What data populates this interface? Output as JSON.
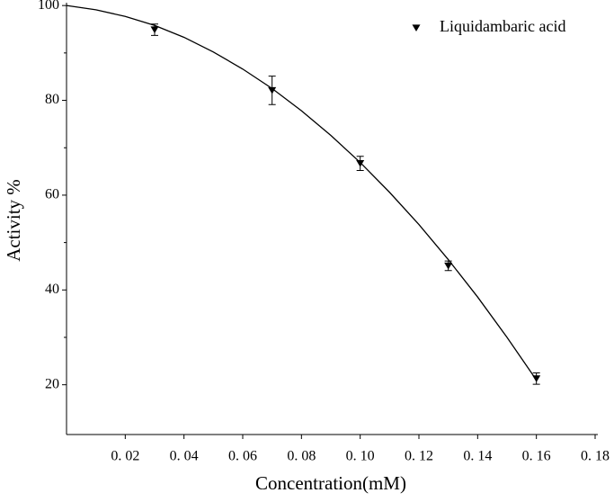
{
  "chart_data": {
    "type": "scatter",
    "xlabel": "Concentration(mM)",
    "ylabel": "Activity %",
    "series": [
      {
        "name": "Liquidambaric acid",
        "color": "#000000",
        "x": [
          0.03,
          0.07,
          0.1,
          0.13,
          0.16
        ],
        "values": [
          94.9,
          82.1,
          66.7,
          45.1,
          21.3
        ],
        "errors": [
          1.2,
          3.0,
          1.5,
          1.0,
          1.2
        ]
      }
    ],
    "fit": {
      "color": "#000000",
      "x": [
        0,
        0.01,
        0.02,
        0.03,
        0.04,
        0.05,
        0.06,
        0.07,
        0.08,
        0.09,
        0.1,
        0.11,
        0.12,
        0.13,
        0.14,
        0.15,
        0.16
      ],
      "values": [
        100,
        99.1,
        97.7,
        95.8,
        93.3,
        90.2,
        86.6,
        82.5,
        77.8,
        72.6,
        66.9,
        60.6,
        53.8,
        46.4,
        38.5,
        30.0,
        21.0
      ]
    },
    "xlim": [
      0,
      0.18
    ],
    "xticks": [
      {
        "value": 0.02,
        "label": "0. 02"
      },
      {
        "value": 0.04,
        "label": "0. 04"
      },
      {
        "value": 0.06,
        "label": "0. 06"
      },
      {
        "value": 0.08,
        "label": "0. 08"
      },
      {
        "value": 0.1,
        "label": "0. 10"
      },
      {
        "value": 0.12,
        "label": "0. 12"
      },
      {
        "value": 0.14,
        "label": "0. 14"
      },
      {
        "value": 0.16,
        "label": "0. 16"
      },
      {
        "value": 0.18,
        "label": "0. 18"
      }
    ],
    "ylim": [
      9.5,
      100.6
    ],
    "yticks": [
      20,
      40,
      60,
      80,
      100
    ],
    "yminorticks": [
      30,
      50,
      70,
      90
    ],
    "legend": "top-right"
  }
}
